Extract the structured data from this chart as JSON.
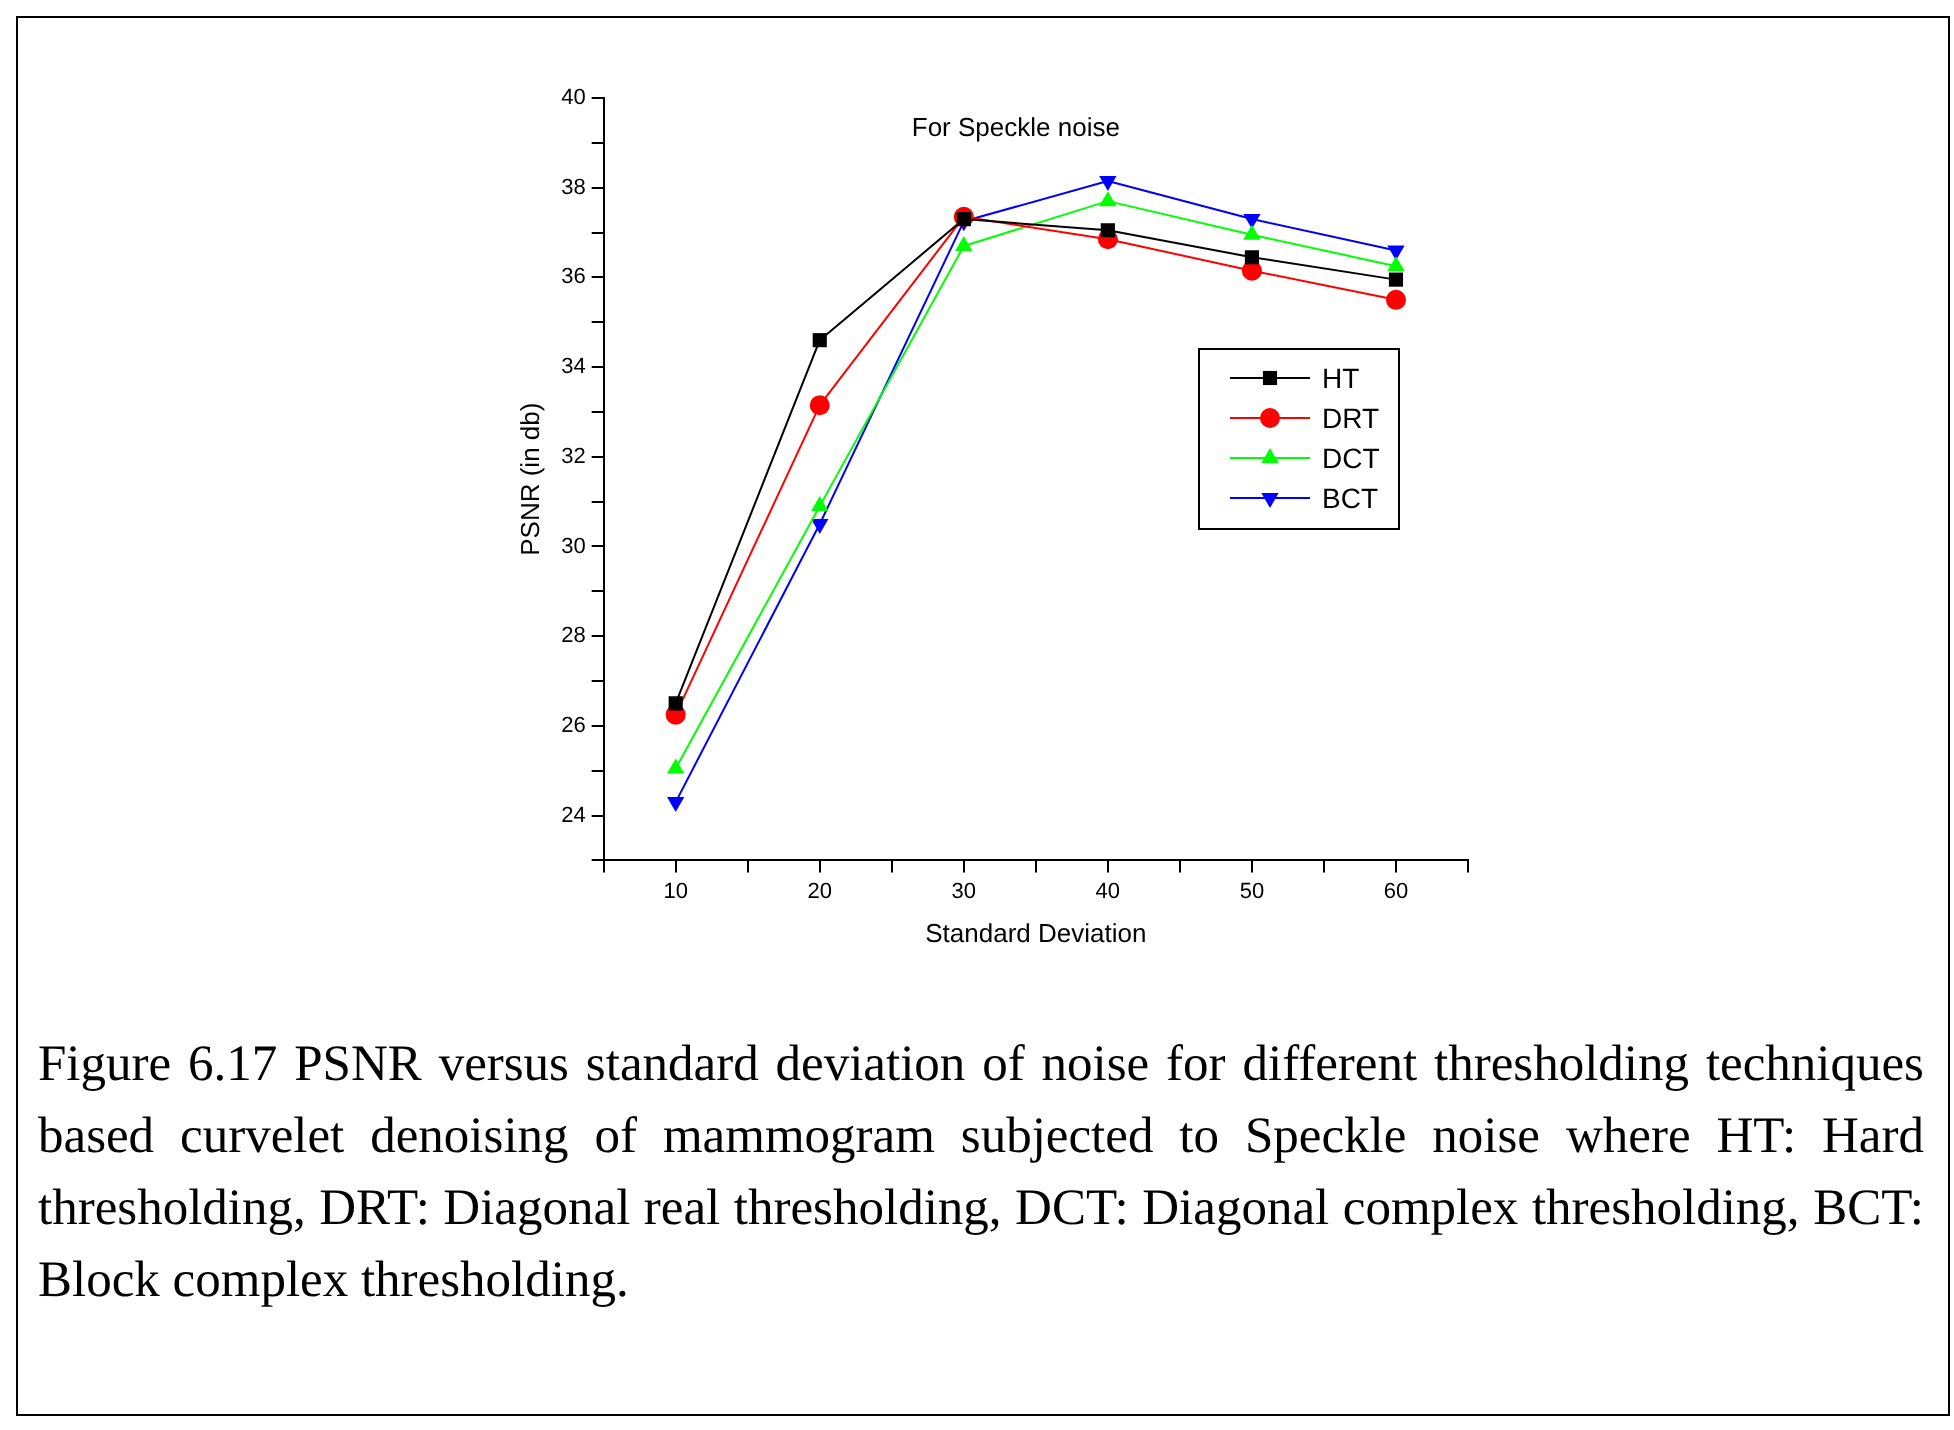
{
  "chart_data": {
    "type": "line",
    "title": "For Speckle noise",
    "xlabel": "Standard Deviation",
    "ylabel": "PSNR (in db)",
    "x": [
      10,
      20,
      30,
      40,
      50,
      60
    ],
    "xlim": [
      5,
      65
    ],
    "xticks": [
      {
        "value": 5,
        "label": null
      },
      10,
      {
        "value": 15,
        "label": null
      },
      20,
      {
        "value": 25,
        "label": null
      },
      30,
      {
        "value": 35,
        "label": null
      },
      40,
      {
        "value": 45,
        "label": null
      },
      50,
      {
        "value": 55,
        "label": null
      },
      60,
      {
        "value": 65,
        "label": null
      }
    ],
    "ylim": [
      23,
      40
    ],
    "yticks": [
      {
        "value": 23,
        "label": null
      },
      24,
      {
        "value": 25,
        "label": null
      },
      26,
      {
        "value": 27,
        "label": null
      },
      28,
      {
        "value": 29,
        "label": null
      },
      30,
      {
        "value": 31,
        "label": null
      },
      32,
      {
        "value": 33,
        "label": null
      },
      34,
      {
        "value": 35,
        "label": null
      },
      36,
      {
        "value": 37,
        "label": null
      },
      38,
      {
        "value": 39,
        "label": null
      },
      40
    ],
    "series": [
      {
        "name": "HT",
        "color": "#000000",
        "marker": "square",
        "values": [
          26.5,
          34.6,
          37.3,
          37.05,
          36.45,
          35.95
        ]
      },
      {
        "name": "DRT",
        "color": "#ff0000",
        "marker": "circle",
        "values": [
          26.25,
          33.15,
          37.35,
          36.85,
          36.15,
          35.5
        ]
      },
      {
        "name": "DCT",
        "color": "#00ff00",
        "marker": "triangle",
        "values": [
          25.05,
          30.9,
          36.7,
          37.7,
          36.95,
          36.25
        ]
      },
      {
        "name": "BCT",
        "color": "#0000ff",
        "marker": "triangle-down",
        "values": [
          24.3,
          30.5,
          37.25,
          38.15,
          37.3,
          36.6
        ]
      }
    ],
    "legend": "right",
    "grid": false,
    "line_style": "solid",
    "annotations": [
      "Figure 6.17  PSNR versus standard deviation of noise for different thresholding techniques based curvelet denoising of mammogram subjected to Speckle noise where HT: Hard thresholding, DRT: Diagonal real thresholding, DCT: Diagonal complex thresholding, BCT: Block complex thresholding."
    ]
  }
}
